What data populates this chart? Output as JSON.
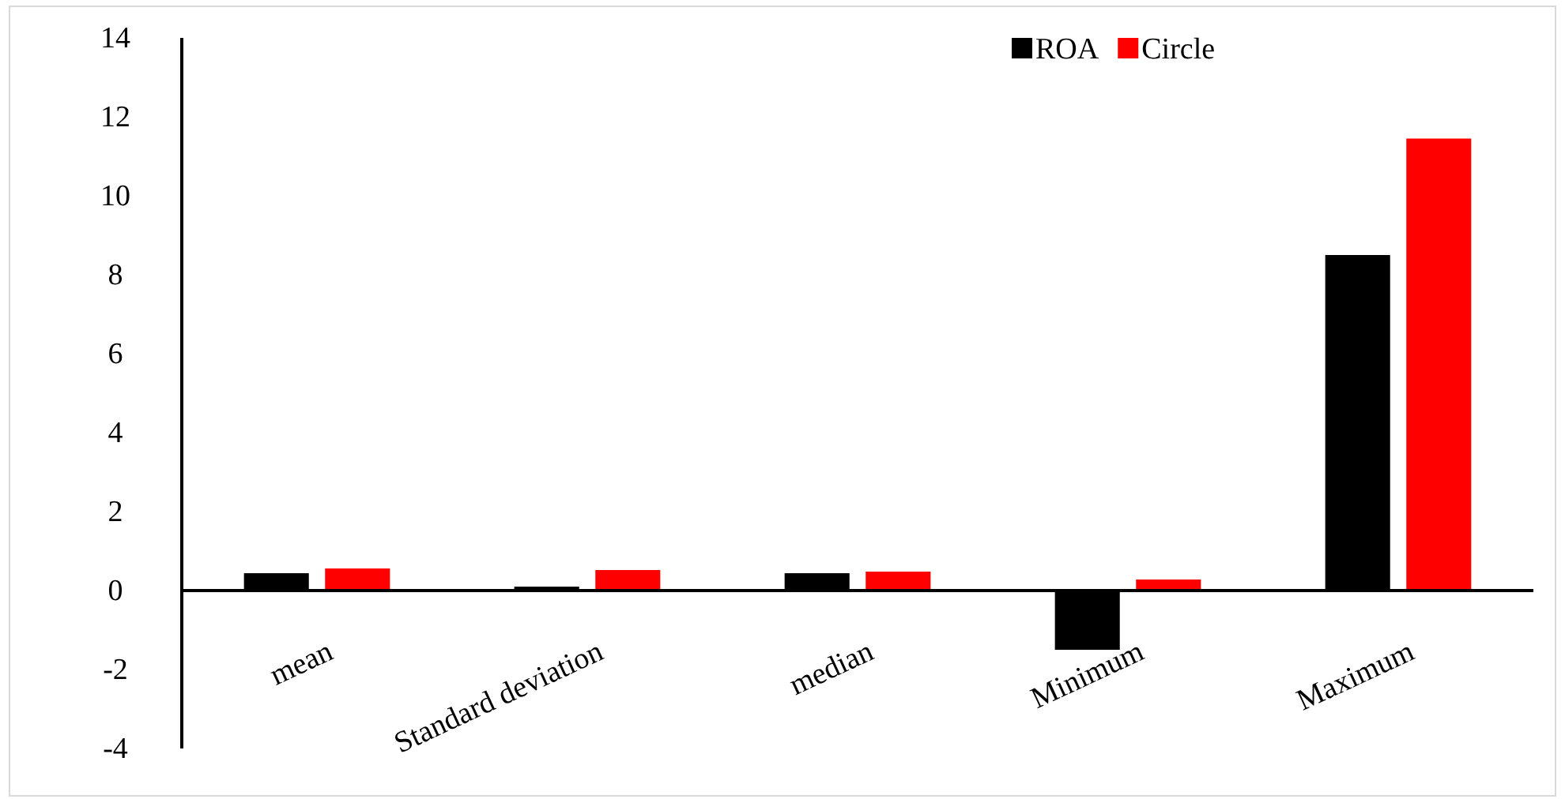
{
  "chart_data": {
    "type": "bar",
    "categories": [
      "mean",
      "Standard deviation",
      "median",
      "Minimum",
      "Maximum"
    ],
    "series": [
      {
        "name": "ROA",
        "color": "#000000",
        "values": [
          0.44,
          0.1,
          0.44,
          -1.5,
          8.5
        ]
      },
      {
        "name": "Circle",
        "color": "#ff0000",
        "values": [
          0.56,
          0.52,
          0.48,
          0.28,
          11.45
        ]
      }
    ],
    "ylim": [
      -4,
      14
    ],
    "yticks": [
      -4,
      -2,
      0,
      2,
      4,
      6,
      8,
      10,
      12,
      14
    ],
    "grid": false,
    "legend": "top right"
  }
}
